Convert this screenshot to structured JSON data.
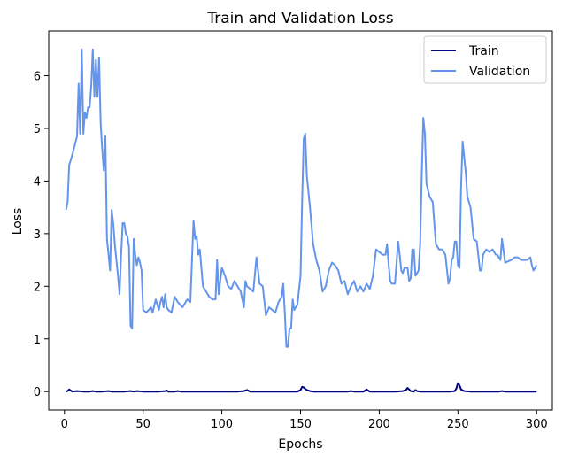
{
  "chart_data": {
    "type": "line",
    "title": "Train and Validation Loss",
    "xlabel": "Epochs",
    "ylabel": "Loss",
    "xlim": [
      -10,
      310
    ],
    "ylim": [
      -0.35,
      6.85
    ],
    "xticks": [
      0,
      50,
      100,
      150,
      200,
      250,
      300
    ],
    "yticks": [
      0,
      1,
      2,
      3,
      4,
      5,
      6
    ],
    "grid": false,
    "legend": "top-right",
    "series": [
      {
        "name": "Train",
        "color": "#000080",
        "x": [
          1,
          2,
          3,
          4,
          5,
          8,
          12,
          16,
          18,
          20,
          24,
          28,
          30,
          34,
          38,
          42,
          44,
          46,
          50,
          55,
          60,
          64,
          65,
          66,
          70,
          72,
          74,
          80,
          90,
          100,
          110,
          114,
          116,
          118,
          122,
          130,
          140,
          148,
          150,
          151,
          152,
          153,
          154,
          156,
          158,
          162,
          170,
          180,
          182,
          184,
          190,
          191,
          192,
          194,
          200,
          205,
          210,
          215,
          217,
          218,
          219,
          220,
          222,
          223,
          224,
          226,
          230,
          240,
          245,
          248,
          249,
          250,
          251,
          252,
          254,
          258,
          262,
          270,
          276,
          278,
          280,
          290,
          300
        ],
        "y": [
          0.0,
          0.01,
          0.04,
          0.02,
          0.0,
          0.01,
          0.0,
          0.0,
          0.01,
          0.0,
          0.0,
          0.01,
          0.0,
          0.0,
          0.0,
          0.01,
          0.0,
          0.01,
          0.0,
          0.0,
          0.0,
          0.01,
          0.02,
          0.0,
          0.0,
          0.01,
          0.0,
          0.0,
          0.0,
          0.0,
          0.0,
          0.01,
          0.03,
          0.0,
          0.0,
          0.0,
          0.0,
          0.0,
          0.03,
          0.09,
          0.08,
          0.05,
          0.03,
          0.01,
          0.0,
          0.0,
          0.0,
          0.0,
          0.01,
          0.0,
          0.0,
          0.02,
          0.04,
          0.0,
          0.0,
          0.0,
          0.0,
          0.01,
          0.03,
          0.07,
          0.04,
          0.01,
          0.0,
          0.03,
          0.01,
          0.0,
          0.0,
          0.0,
          0.0,
          0.01,
          0.06,
          0.16,
          0.12,
          0.04,
          0.01,
          0.0,
          0.0,
          0.0,
          0.0,
          0.01,
          0.0,
          0.0,
          0.0
        ]
      },
      {
        "name": "Validation",
        "color": "#6495ED",
        "x": [
          1,
          2,
          3,
          5,
          8,
          9,
          10,
          11,
          12,
          13,
          14,
          15,
          16,
          17,
          18,
          19,
          20,
          21,
          22,
          23,
          24,
          25,
          26,
          27,
          28,
          29,
          30,
          31,
          32,
          33,
          34,
          35,
          36,
          37,
          38,
          39,
          40,
          41,
          42,
          43,
          44,
          45,
          46,
          47,
          48,
          49,
          50,
          52,
          55,
          56,
          58,
          60,
          61,
          62,
          63,
          64,
          65,
          66,
          68,
          70,
          72,
          75,
          78,
          80,
          82,
          83,
          84,
          85,
          86,
          88,
          90,
          92,
          94,
          96,
          97,
          98,
          100,
          102,
          104,
          106,
          108,
          110,
          112,
          113,
          114,
          115,
          116,
          118,
          120,
          122,
          124,
          126,
          128,
          130,
          132,
          134,
          136,
          138,
          139,
          140,
          141,
          142,
          143,
          144,
          145,
          146,
          148,
          150,
          151,
          152,
          153,
          154,
          156,
          158,
          160,
          162,
          164,
          166,
          168,
          170,
          172,
          174,
          176,
          178,
          180,
          182,
          184,
          186,
          188,
          190,
          192,
          194,
          196,
          198,
          200,
          202,
          204,
          205,
          206,
          207,
          208,
          210,
          212,
          213,
          214,
          215,
          216,
          218,
          219,
          220,
          221,
          222,
          223,
          224,
          225,
          226,
          227,
          228,
          229,
          230,
          232,
          234,
          236,
          237,
          238,
          240,
          242,
          244,
          245,
          246,
          247,
          248,
          249,
          250,
          251,
          252,
          253,
          254,
          255,
          256,
          258,
          260,
          262,
          264,
          265,
          266,
          268,
          270,
          272,
          274,
          275,
          276,
          277,
          278,
          280,
          284,
          286,
          288,
          290,
          292,
          294,
          296,
          297,
          298,
          300
        ],
        "y": [
          3.45,
          3.6,
          4.3,
          4.5,
          4.85,
          5.85,
          4.9,
          6.5,
          4.9,
          5.3,
          5.2,
          5.4,
          5.4,
          5.8,
          6.5,
          5.6,
          6.3,
          5.6,
          6.35,
          5.1,
          4.6,
          4.2,
          4.85,
          2.9,
          2.6,
          2.3,
          3.45,
          3.2,
          2.8,
          2.5,
          2.2,
          1.85,
          2.6,
          3.2,
          3.2,
          3.0,
          2.95,
          2.75,
          1.25,
          1.2,
          2.9,
          2.6,
          2.4,
          2.55,
          2.45,
          2.3,
          1.55,
          1.5,
          1.6,
          1.5,
          1.75,
          1.55,
          1.7,
          1.8,
          1.6,
          1.85,
          1.6,
          1.55,
          1.5,
          1.8,
          1.7,
          1.6,
          1.75,
          1.7,
          3.25,
          2.9,
          2.95,
          2.6,
          2.7,
          2.0,
          1.9,
          1.8,
          1.75,
          1.75,
          2.5,
          1.85,
          2.35,
          2.2,
          2.0,
          1.95,
          2.1,
          2.0,
          1.9,
          1.75,
          1.6,
          2.1,
          2.0,
          1.95,
          1.9,
          2.55,
          2.05,
          2.0,
          1.45,
          1.6,
          1.55,
          1.5,
          1.7,
          1.8,
          2.05,
          1.5,
          0.85,
          0.85,
          1.2,
          1.2,
          1.75,
          1.55,
          1.65,
          2.2,
          3.6,
          4.8,
          4.9,
          4.1,
          3.5,
          2.8,
          2.5,
          2.3,
          1.9,
          2.0,
          2.3,
          2.45,
          2.4,
          2.3,
          2.05,
          2.1,
          1.85,
          2.0,
          2.1,
          1.9,
          2.0,
          1.9,
          2.05,
          1.95,
          2.2,
          2.7,
          2.65,
          2.6,
          2.6,
          2.8,
          2.4,
          2.1,
          2.05,
          2.05,
          2.85,
          2.6,
          2.3,
          2.25,
          2.35,
          2.35,
          2.1,
          2.15,
          2.7,
          2.7,
          2.2,
          2.25,
          2.3,
          2.8,
          4.1,
          5.2,
          4.9,
          3.95,
          3.7,
          3.6,
          2.8,
          2.75,
          2.7,
          2.7,
          2.6,
          2.05,
          2.15,
          2.5,
          2.55,
          2.85,
          2.85,
          2.4,
          2.35,
          3.9,
          4.75,
          4.45,
          4.15,
          3.7,
          3.5,
          2.9,
          2.85,
          2.3,
          2.3,
          2.6,
          2.7,
          2.65,
          2.7,
          2.6,
          2.6,
          2.55,
          2.5,
          2.9,
          2.45,
          2.5,
          2.55,
          2.55,
          2.5,
          2.5,
          2.5,
          2.55,
          2.4,
          2.3,
          2.4
        ]
      }
    ]
  }
}
